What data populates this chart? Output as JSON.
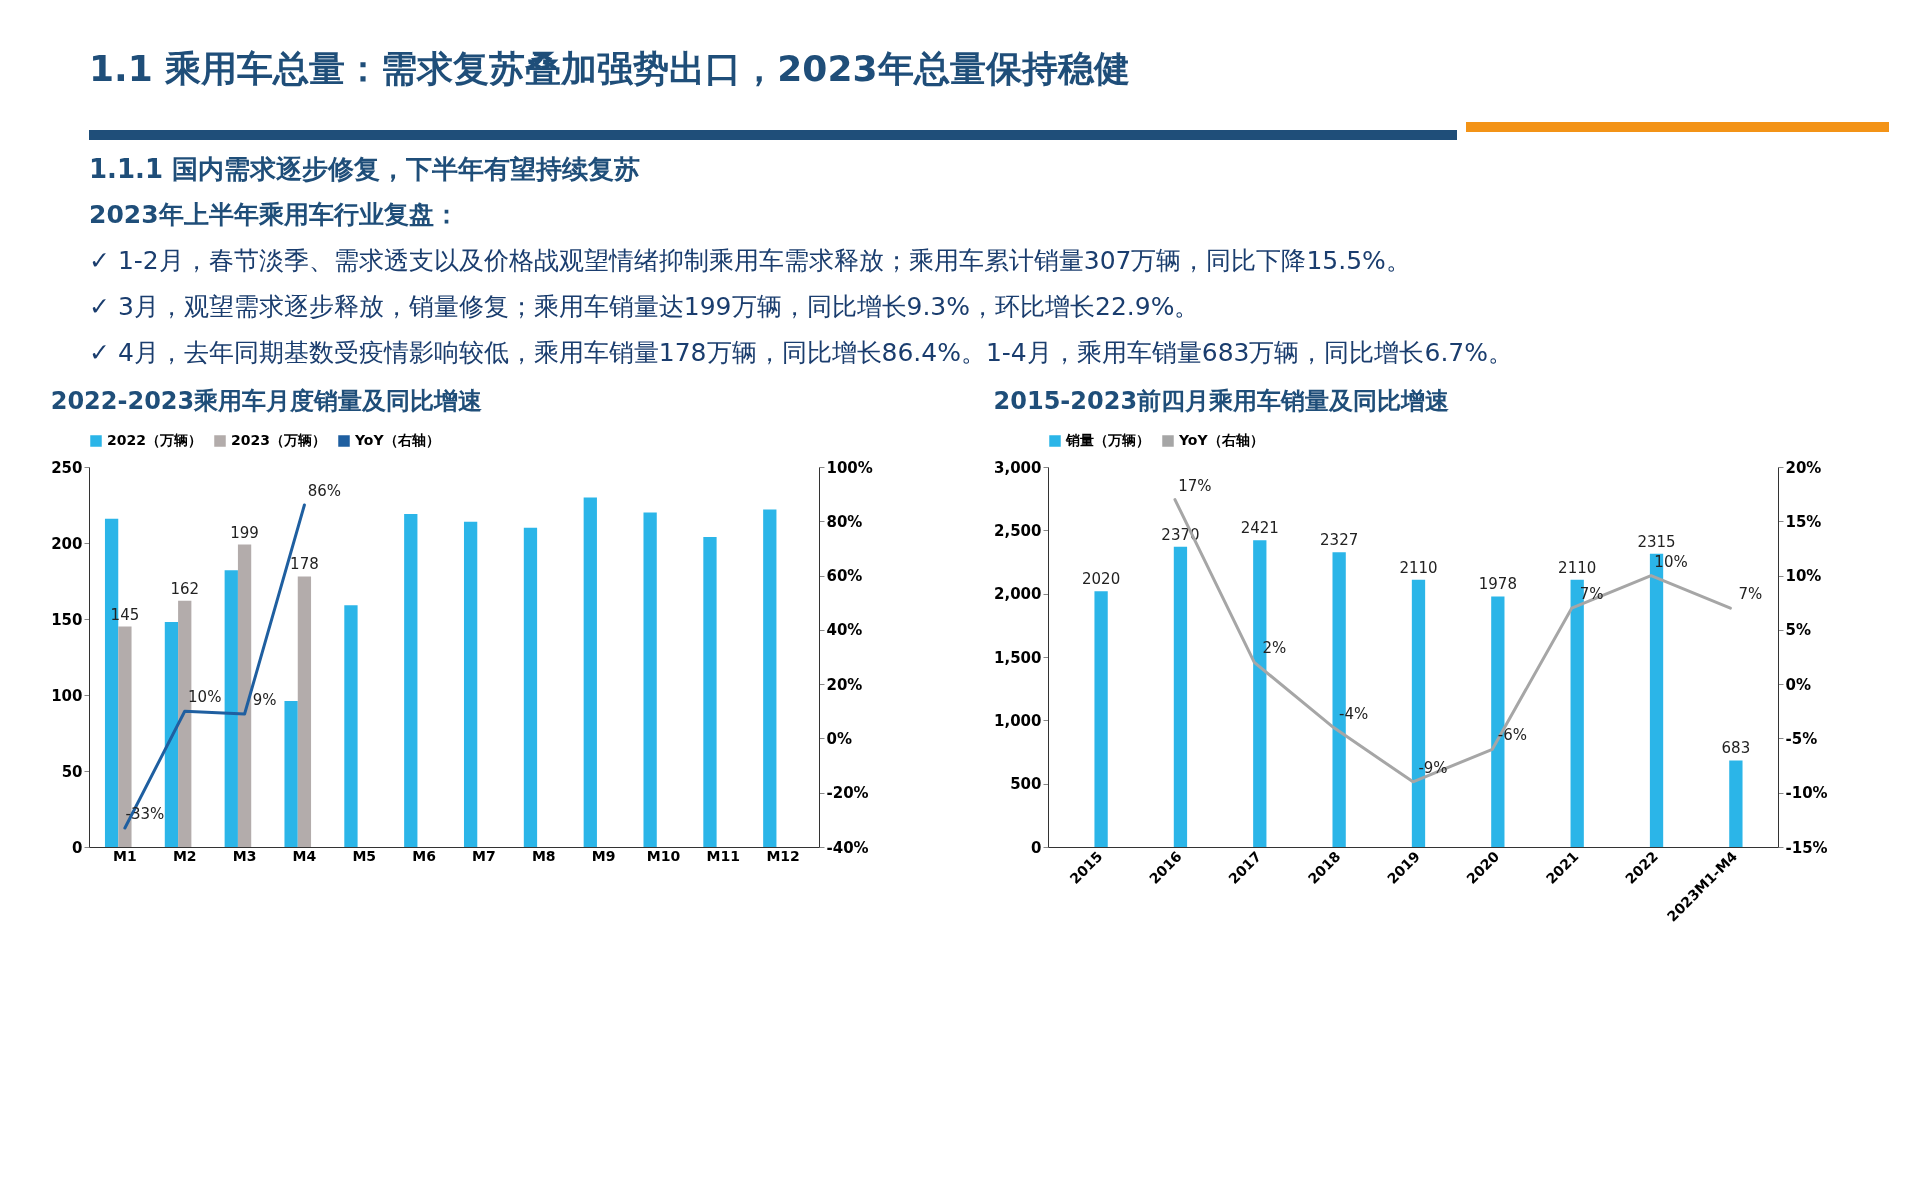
{
  "chart_data": [
    {
      "type": "other",
      "title": "1.1 乘用车总量：需求复苏叠加强势出口，2023年总量保持稳健",
      "subtitle": "1.1.1 国内需求逐步修复，下半年有望持续复苏",
      "annotations": [
        "2023年上半年乘用车行业复盘：",
        "✓ 1-2月，春节淡季、需求透支以及价格战观望情绪抑制乘用车需求释放；乘用车累计销量307万辆，同比下降15.5%。",
        "✓ 3月，观望需求逐步释放，销量修复；乘用车销量达199万辆，同比增长9.3%，环比增长22.9%。",
        "✓ 4月，去年同期基数受疫情影响较低，乘用车销量178万辆，同比增长86.4%。1-4月，乘用车销量683万辆，同比增长6.7%。"
      ]
    },
    {
      "type": "bar",
      "title": "2022-2023乘用车月度销量及同比增速",
      "categories": [
        "M1",
        "M2",
        "M3",
        "M4",
        "M5",
        "M6",
        "M7",
        "M8",
        "M9",
        "M10",
        "M11",
        "M12"
      ],
      "series": [
        {
          "name": "2022（万辆）",
          "type": "bar",
          "color": "#2bb5e8",
          "values": [
            216,
            148,
            182,
            96,
            159,
            219,
            214,
            210,
            230,
            220,
            204,
            222
          ]
        },
        {
          "name": "2023（万辆）",
          "type": "bar",
          "color": "#b3acab",
          "values": [
            145,
            162,
            199,
            178,
            null,
            null,
            null,
            null,
            null,
            null,
            null,
            null
          ],
          "value_labels": [
            "145",
            "162",
            "199",
            "178",
            null,
            null,
            null,
            null,
            null,
            null,
            null,
            null
          ]
        },
        {
          "name": "YoY（右轴）",
          "type": "line",
          "axis": "y2",
          "color": "#1f5fa0",
          "values": [
            -33,
            10,
            9,
            86,
            null,
            null,
            null,
            null,
            null,
            null,
            null,
            null
          ],
          "value_labels": [
            "-33%",
            "10%",
            "9%",
            "86%",
            null,
            null,
            null,
            null,
            null,
            null,
            null,
            null
          ]
        }
      ],
      "ylim": [
        0,
        250
      ],
      "yticks": [
        0,
        50,
        100,
        150,
        200,
        250
      ],
      "y2lim": [
        -40,
        100
      ],
      "y2ticks": [
        {
          "value": -40,
          "label": "-40%"
        },
        {
          "value": -20,
          "label": "-20%"
        },
        {
          "value": 0,
          "label": "0%"
        },
        {
          "value": 20,
          "label": "20%"
        },
        {
          "value": 40,
          "label": "40%"
        },
        {
          "value": 60,
          "label": "60%"
        },
        {
          "value": 80,
          "label": "80%"
        },
        {
          "value": 100,
          "label": "100%"
        }
      ],
      "legend": "top",
      "grid": false
    },
    {
      "type": "bar",
      "title": "2015-2023前四月乘用车销量及同比增速",
      "categories": [
        "2015",
        "2016",
        "2017",
        "2018",
        "2019",
        "2020",
        "2021",
        "2022",
        "2023M1-M4"
      ],
      "series": [
        {
          "name": "销量（万辆）",
          "type": "bar",
          "color": "#2bb5e8",
          "values": [
            2020,
            2370,
            2421,
            2327,
            2110,
            1978,
            2110,
            2315,
            683
          ],
          "value_labels": [
            "2020",
            "2370",
            "2421",
            "2327",
            "2110",
            "1978",
            "2110",
            "2315",
            "683"
          ]
        },
        {
          "name": "YoY（右轴）",
          "type": "line",
          "axis": "y2",
          "color": "#a6a6a6",
          "values": [
            null,
            17,
            2,
            -4,
            -9,
            -6,
            7,
            10,
            7
          ],
          "value_labels": [
            null,
            "17%",
            "2%",
            "-4%",
            "-9%",
            "-6%",
            "7%",
            "10%",
            "7%"
          ]
        }
      ],
      "ylim": [
        0,
        3000
      ],
      "yticks": [
        0,
        {
          "value": 500,
          "label": "500"
        },
        {
          "value": 1000,
          "label": "1,000"
        },
        {
          "value": 1500,
          "label": "1,500"
        },
        {
          "value": 2000,
          "label": "2,000"
        },
        {
          "value": 2500,
          "label": "2,500"
        },
        {
          "value": 3000,
          "label": "3,000"
        }
      ],
      "y2lim": [
        -15,
        20
      ],
      "y2ticks": [
        {
          "value": -15,
          "label": "-15%"
        },
        {
          "value": -10,
          "label": "-10%"
        },
        {
          "value": -5,
          "label": "-5%"
        },
        {
          "value": 0,
          "label": "0%"
        },
        {
          "value": 5,
          "label": "5%"
        },
        {
          "value": 10,
          "label": "10%"
        },
        {
          "value": 15,
          "label": "15%"
        },
        {
          "value": 20,
          "label": "20%"
        }
      ],
      "legend": "top",
      "grid": false
    }
  ]
}
